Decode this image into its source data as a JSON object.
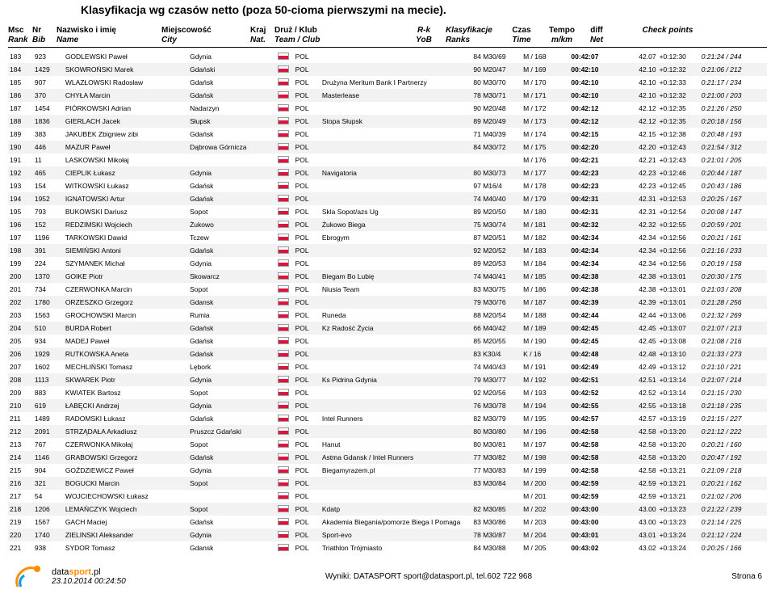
{
  "title": "Klasyfikacja wg czasów netto (poza 50-cioma pierwszymi na mecie).",
  "headers": {
    "msc": "Msc",
    "rank": "Rank",
    "nr": "Nr",
    "bib": "Bib",
    "name_top": "Nazwisko i imię",
    "name_bot": "Name",
    "city_top": "Miejscowość",
    "city_bot": "City",
    "nat_top": "Kraj",
    "nat_bot": "Nat.",
    "team_top": "Druż / Klub",
    "team_bot": "Team / Club",
    "rk_top": "R-k",
    "rk_bot": "YoB",
    "klas_top": "Klasyfikacje",
    "klas_bot": "Ranks",
    "czas_top": "Czas",
    "czas_bot": "Time",
    "tempo_top": "Tempo",
    "tempo_bot": "m/km",
    "diff_top": "diff",
    "diff_bot": "Net",
    "cp": "Check points"
  },
  "rows": [
    {
      "rank": "183",
      "bib": "923",
      "name": "GODLEWSKI Paweł",
      "city": "Gdynia",
      "nat": "POL",
      "team": "",
      "rk": "84 M30/69",
      "klas": "M / 168",
      "czas": "00:42:07",
      "tempo": "42.07",
      "diff": "+0:12:30",
      "cp": "0:21:24 / 244"
    },
    {
      "rank": "184",
      "bib": "1429",
      "name": "SKOWROŃSKI Marek",
      "city": "Gdański",
      "nat": "POL",
      "team": "",
      "rk": "90 M20/47",
      "klas": "M / 169",
      "czas": "00:42:10",
      "tempo": "42.10",
      "diff": "+0:12:32",
      "cp": "0:21:06 / 212"
    },
    {
      "rank": "185",
      "bib": "907",
      "name": "WLAZŁOWSKI Radosław",
      "city": "Gdańsk",
      "nat": "POL",
      "team": "Drużyna Meritum Bank I Partnerzy",
      "rk": "80 M30/70",
      "klas": "M / 170",
      "czas": "00:42:10",
      "tempo": "42.10",
      "diff": "+0:12:33",
      "cp": "0:21:17 / 234"
    },
    {
      "rank": "186",
      "bib": "370",
      "name": "CHYŁA Marcin",
      "city": "Gdańsk",
      "nat": "POL",
      "team": "Masterlease",
      "rk": "78 M30/71",
      "klas": "M / 171",
      "czas": "00:42:10",
      "tempo": "42.10",
      "diff": "+0:12:32",
      "cp": "0:21:00 / 203"
    },
    {
      "rank": "187",
      "bib": "1454",
      "name": "PIÓRKOWSKI Adrian",
      "city": "Nadarzyn",
      "nat": "POL",
      "team": "",
      "rk": "90 M20/48",
      "klas": "M / 172",
      "czas": "00:42:12",
      "tempo": "42.12",
      "diff": "+0:12:35",
      "cp": "0:21:26 / 250"
    },
    {
      "rank": "188",
      "bib": "1836",
      "name": "GIERLACH Jacek",
      "city": "Słupsk",
      "nat": "POL",
      "team": "Stopa Słupsk",
      "rk": "89 M20/49",
      "klas": "M / 173",
      "czas": "00:42:12",
      "tempo": "42.12",
      "diff": "+0:12:35",
      "cp": "0:20:18 / 156"
    },
    {
      "rank": "189",
      "bib": "383",
      "name": "JAKUBEK Zbigniew zibi",
      "city": "Gdańsk",
      "nat": "POL",
      "team": "",
      "rk": "71 M40/39",
      "klas": "M / 174",
      "czas": "00:42:15",
      "tempo": "42.15",
      "diff": "+0:12:38",
      "cp": "0:20:48 / 193"
    },
    {
      "rank": "190",
      "bib": "446",
      "name": "MAZUR Paweł",
      "city": "Dąbrowa Górnicza",
      "nat": "POL",
      "team": "",
      "rk": "84 M30/72",
      "klas": "M / 175",
      "czas": "00:42:20",
      "tempo": "42.20",
      "diff": "+0:12:43",
      "cp": "0:21:54 / 312"
    },
    {
      "rank": "191",
      "bib": "11",
      "name": "LASKOWSKI Mikołaj",
      "city": "",
      "nat": "POL",
      "team": "",
      "rk": "",
      "klas": "M / 176",
      "czas": "00:42:21",
      "tempo": "42.21",
      "diff": "+0:12:43",
      "cp": "0:21:01 / 205"
    },
    {
      "rank": "192",
      "bib": "465",
      "name": "CIEPLIK Łukasz",
      "city": "Gdynia",
      "nat": "POL",
      "team": "Navigatoria",
      "rk": "80 M30/73",
      "klas": "M / 177",
      "czas": "00:42:23",
      "tempo": "42.23",
      "diff": "+0:12:46",
      "cp": "0:20:44 / 187"
    },
    {
      "rank": "193",
      "bib": "154",
      "name": "WITKOWSKI Łukasz",
      "city": "Gdańsk",
      "nat": "POL",
      "team": "",
      "rk": "97 M16/4",
      "klas": "M / 178",
      "czas": "00:42:23",
      "tempo": "42.23",
      "diff": "+0:12:45",
      "cp": "0:20:43 / 186"
    },
    {
      "rank": "194",
      "bib": "1952",
      "name": "IGNATOWSKI Artur",
      "city": "Gdańsk",
      "nat": "POL",
      "team": "",
      "rk": "74 M40/40",
      "klas": "M / 179",
      "czas": "00:42:31",
      "tempo": "42.31",
      "diff": "+0:12:53",
      "cp": "0:20:25 / 167"
    },
    {
      "rank": "195",
      "bib": "793",
      "name": "BUKOWSKI Dariusz",
      "city": "Sopot",
      "nat": "POL",
      "team": "Skla Sopot/azs Ug",
      "rk": "89 M20/50",
      "klas": "M / 180",
      "czas": "00:42:31",
      "tempo": "42.31",
      "diff": "+0:12:54",
      "cp": "0:20:08 / 147"
    },
    {
      "rank": "196",
      "bib": "152",
      "name": "REDZIMSKI Wojciech",
      "city": "Żukowo",
      "nat": "POL",
      "team": "Żukowo Biega",
      "rk": "75 M30/74",
      "klas": "M / 181",
      "czas": "00:42:32",
      "tempo": "42.32",
      "diff": "+0:12:55",
      "cp": "0:20:59 / 201"
    },
    {
      "rank": "197",
      "bib": "1196",
      "name": "TARKOWSKI Dawid",
      "city": "Tczew",
      "nat": "POL",
      "team": "Ebrogym",
      "rk": "87 M20/51",
      "klas": "M / 182",
      "czas": "00:42:34",
      "tempo": "42.34",
      "diff": "+0:12:56",
      "cp": "0:20:21 / 161"
    },
    {
      "rank": "198",
      "bib": "391",
      "name": "SIEMIŃSKI Antoni",
      "city": "Gdańsk",
      "nat": "POL",
      "team": "",
      "rk": "92 M20/52",
      "klas": "M / 183",
      "czas": "00:42:34",
      "tempo": "42.34",
      "diff": "+0:12:56",
      "cp": "0:21:16 / 233"
    },
    {
      "rank": "199",
      "bib": "224",
      "name": "SZYMANEK Michał",
      "city": "Gdynia",
      "nat": "POL",
      "team": "",
      "rk": "89 M20/53",
      "klas": "M / 184",
      "czas": "00:42:34",
      "tempo": "42.34",
      "diff": "+0:12:56",
      "cp": "0:20:19 / 158"
    },
    {
      "rank": "200",
      "bib": "1370",
      "name": "GOIKE Piotr",
      "city": "Skowarcz",
      "nat": "POL",
      "team": "Biegam Bo Lubię",
      "rk": "74 M40/41",
      "klas": "M / 185",
      "czas": "00:42:38",
      "tempo": "42.38",
      "diff": "+0:13:01",
      "cp": "0:20:30 / 175"
    },
    {
      "rank": "201",
      "bib": "734",
      "name": "CZERWONKA Marcin",
      "city": "Sopot",
      "nat": "POL",
      "team": "Niusia Team",
      "rk": "83 M30/75",
      "klas": "M / 186",
      "czas": "00:42:38",
      "tempo": "42.38",
      "diff": "+0:13:01",
      "cp": "0:21:03 / 208"
    },
    {
      "rank": "202",
      "bib": "1780",
      "name": "ORZESZKO Grzegorz",
      "city": "Gdansk",
      "nat": "POL",
      "team": "",
      "rk": "79 M30/76",
      "klas": "M / 187",
      "czas": "00:42:39",
      "tempo": "42.39",
      "diff": "+0:13:01",
      "cp": "0:21:28 / 256"
    },
    {
      "rank": "203",
      "bib": "1563",
      "name": "GROCHOWSKI Marcin",
      "city": "Rumia",
      "nat": "POL",
      "team": "Runeda",
      "rk": "88 M20/54",
      "klas": "M / 188",
      "czas": "00:42:44",
      "tempo": "42.44",
      "diff": "+0:13:06",
      "cp": "0:21:32 / 269"
    },
    {
      "rank": "204",
      "bib": "510",
      "name": "BURDA Robert",
      "city": "Gdańsk",
      "nat": "POL",
      "team": "Kz Radość Życia",
      "rk": "66 M40/42",
      "klas": "M / 189",
      "czas": "00:42:45",
      "tempo": "42.45",
      "diff": "+0:13:07",
      "cp": "0:21:07 / 213"
    },
    {
      "rank": "205",
      "bib": "934",
      "name": "MADEJ Paweł",
      "city": "Gdańsk",
      "nat": "POL",
      "team": "",
      "rk": "85 M20/55",
      "klas": "M / 190",
      "czas": "00:42:45",
      "tempo": "42.45",
      "diff": "+0:13:08",
      "cp": "0:21:08 / 216"
    },
    {
      "rank": "206",
      "bib": "1929",
      "name": "RUTKOWSKA Aneta",
      "city": "Gdańsk",
      "nat": "POL",
      "team": "",
      "rk": "83 K30/4",
      "klas": "K / 16",
      "czas": "00:42:48",
      "tempo": "42.48",
      "diff": "+0:13:10",
      "cp": "0:21:33 / 273"
    },
    {
      "rank": "207",
      "bib": "1602",
      "name": "MECHLIŃSKI Tomasz",
      "city": "Lębork",
      "nat": "POL",
      "team": "",
      "rk": "74 M40/43",
      "klas": "M / 191",
      "czas": "00:42:49",
      "tempo": "42.49",
      "diff": "+0:13:12",
      "cp": "0:21:10 / 221"
    },
    {
      "rank": "208",
      "bib": "1113",
      "name": "SKWAREK Piotr",
      "city": "Gdynia",
      "nat": "POL",
      "team": "Ks Pidrina Gdynia",
      "rk": "79 M30/77",
      "klas": "M / 192",
      "czas": "00:42:51",
      "tempo": "42.51",
      "diff": "+0:13:14",
      "cp": "0:21:07 / 214"
    },
    {
      "rank": "209",
      "bib": "883",
      "name": "KWIATEK Bartosz",
      "city": "Sopot",
      "nat": "POL",
      "team": "",
      "rk": "92 M20/56",
      "klas": "M / 193",
      "czas": "00:42:52",
      "tempo": "42.52",
      "diff": "+0:13:14",
      "cp": "0:21:15 / 230"
    },
    {
      "rank": "210",
      "bib": "619",
      "name": "ŁABĘCKI Andrzej",
      "city": "Gdynia",
      "nat": "POL",
      "team": "",
      "rk": "76 M30/78",
      "klas": "M / 194",
      "czas": "00:42:55",
      "tempo": "42.55",
      "diff": "+0:13:18",
      "cp": "0:21:18 / 235"
    },
    {
      "rank": "211",
      "bib": "1489",
      "name": "RADOMSKI Łukasz",
      "city": "Gdańsk",
      "nat": "POL",
      "team": "Intel Runners",
      "rk": "82 M30/79",
      "klas": "M / 195",
      "czas": "00:42:57",
      "tempo": "42.57",
      "diff": "+0:13:19",
      "cp": "0:21:15 / 227"
    },
    {
      "rank": "212",
      "bib": "2091",
      "name": "STRZĄDAŁA Arkadiusz",
      "city": "Pruszcz Gdański",
      "nat": "POL",
      "team": "",
      "rk": "80 M30/80",
      "klas": "M / 196",
      "czas": "00:42:58",
      "tempo": "42.58",
      "diff": "+0:13:20",
      "cp": "0:21:12 / 222"
    },
    {
      "rank": "213",
      "bib": "767",
      "name": "CZERWONKA Mikołaj",
      "city": "Sopot",
      "nat": "POL",
      "team": "Hanut",
      "rk": "80 M30/81",
      "klas": "M / 197",
      "czas": "00:42:58",
      "tempo": "42.58",
      "diff": "+0:13:20",
      "cp": "0:20:21 / 160"
    },
    {
      "rank": "214",
      "bib": "1146",
      "name": "GRABOWSKI Grzegorz",
      "city": "Gdańsk",
      "nat": "POL",
      "team": "Astma Gdansk / Intel Runners",
      "rk": "77 M30/82",
      "klas": "M / 198",
      "czas": "00:42:58",
      "tempo": "42.58",
      "diff": "+0:13:20",
      "cp": "0:20:47 / 192"
    },
    {
      "rank": "215",
      "bib": "904",
      "name": "GOŹDZIEWICZ Paweł",
      "city": "Gdynia",
      "nat": "POL",
      "team": "Biegamyrazem.pl",
      "rk": "77 M30/83",
      "klas": "M / 199",
      "czas": "00:42:58",
      "tempo": "42.58",
      "diff": "+0:13:21",
      "cp": "0:21:09 / 218"
    },
    {
      "rank": "216",
      "bib": "321",
      "name": "BOGUCKI Marcin",
      "city": "Sopot",
      "nat": "POL",
      "team": "",
      "rk": "83 M30/84",
      "klas": "M / 200",
      "czas": "00:42:59",
      "tempo": "42.59",
      "diff": "+0:13:21",
      "cp": "0:20:21 / 162"
    },
    {
      "rank": "217",
      "bib": "54",
      "name": "WOJCIECHOWSKI Łukasz",
      "city": "",
      "nat": "POL",
      "team": "",
      "rk": "",
      "klas": "M / 201",
      "czas": "00:42:59",
      "tempo": "42.59",
      "diff": "+0:13:21",
      "cp": "0:21:02 / 206"
    },
    {
      "rank": "218",
      "bib": "1206",
      "name": "LEMAŃCZYK Wojciech",
      "city": "Sopot",
      "nat": "POL",
      "team": "Kdatp",
      "rk": "82 M30/85",
      "klas": "M / 202",
      "czas": "00:43:00",
      "tempo": "43.00",
      "diff": "+0:13:23",
      "cp": "0:21:22 / 239"
    },
    {
      "rank": "219",
      "bib": "1567",
      "name": "GACH Maciej",
      "city": "Gdańsk",
      "nat": "POL",
      "team": "Akademia Biegania/pomorze Biega I Pomaga",
      "rk": "83 M30/86",
      "klas": "M / 203",
      "czas": "00:43:00",
      "tempo": "43.00",
      "diff": "+0:13:23",
      "cp": "0:21:14 / 225"
    },
    {
      "rank": "220",
      "bib": "1740",
      "name": "ZIELINSKI Aleksander",
      "city": "Gdynia",
      "nat": "POL",
      "team": "Sport-evo",
      "rk": "78 M30/87",
      "klas": "M / 204",
      "czas": "00:43:01",
      "tempo": "43.01",
      "diff": "+0:13:24",
      "cp": "0:21:12 / 224"
    },
    {
      "rank": "221",
      "bib": "938",
      "name": "SYDOR Tomasz",
      "city": "Gdansk",
      "nat": "POL",
      "team": "Triathlon Trójmiasto",
      "rk": "84 M30/88",
      "klas": "M / 205",
      "czas": "00:43:02",
      "tempo": "43.02",
      "diff": "+0:13:24",
      "cp": "0:20:25 / 166"
    }
  ],
  "footer": {
    "date": "23.10.2014 00:24:50",
    "center": "Wyniki: DATASPORT sport@datasport.pl, tel.602 722 968",
    "right": "Strona    6",
    "brand_a": "data",
    "brand_b": "sport",
    "brand_c": ".pl"
  }
}
